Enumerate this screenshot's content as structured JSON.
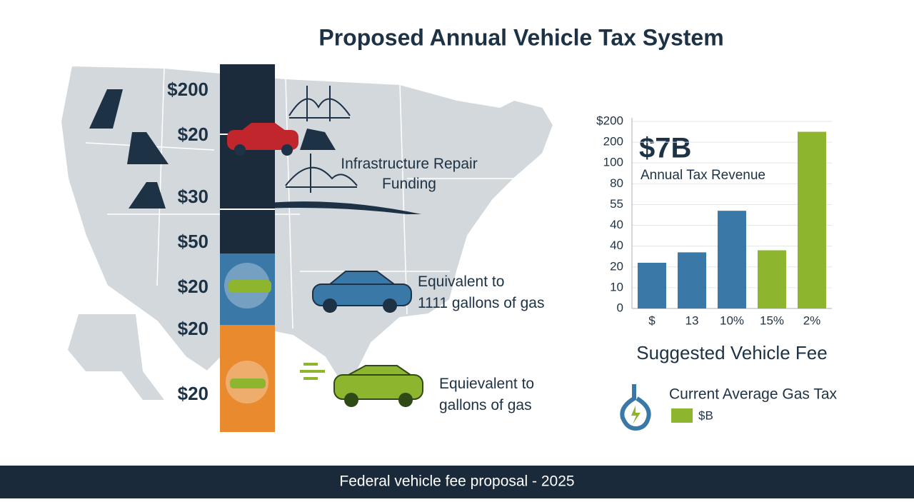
{
  "header": {
    "title": "Proposed Annual Vehicle Tax System"
  },
  "fee_column": {
    "labels": [
      "$200",
      "$20",
      "$30",
      "$50",
      "$20",
      "$20",
      "$20"
    ],
    "segments": [
      {
        "color": "#1b2b3c"
      },
      {
        "color": "#3a78a8"
      },
      {
        "color": "#e98a2e"
      }
    ]
  },
  "notes": [
    {
      "lines": [
        "Infrastructure Repair",
        "Funding"
      ]
    },
    {
      "lines": [
        "Equivalent to",
        "1111 gallons of gas"
      ]
    },
    {
      "lines": [
        "Equievalent to",
        "gallons of gas"
      ]
    }
  ],
  "callout": {
    "headline": "$7B",
    "label": "Annual Tax Revenue"
  },
  "chart_data": {
    "type": "bar",
    "categories": [
      "$",
      "13",
      "10%",
      "15%",
      "2%"
    ],
    "values": [
      2.2,
      2.7,
      4.7,
      2.8,
      8.5
    ],
    "colors": [
      "#3a78a8",
      "#3a78a8",
      "#3a78a8",
      "#8db52e",
      "#8db52e"
    ],
    "ylim": [
      0,
      9
    ],
    "yticks": [
      {
        "value": 0,
        "label": "0"
      },
      {
        "value": 1,
        "label": "10"
      },
      {
        "value": 2,
        "label": "20"
      },
      {
        "value": 3,
        "label": "40"
      },
      {
        "value": 4,
        "label": "40"
      },
      {
        "value": 5,
        "label": "55"
      },
      {
        "value": 6,
        "label": "80"
      },
      {
        "value": 7,
        "label": "100"
      },
      {
        "value": 8,
        "label": "200"
      },
      {
        "value": 9,
        "label": "$200"
      }
    ],
    "grid": true,
    "xlabel": "Suggested Vehicle Fee"
  },
  "legend": {
    "title": "Current Average Gas Tax",
    "items": [
      {
        "label": "$B",
        "color": "#8db52e"
      }
    ]
  },
  "footer": {
    "text": "Federal vehicle fee proposal - 2025"
  }
}
